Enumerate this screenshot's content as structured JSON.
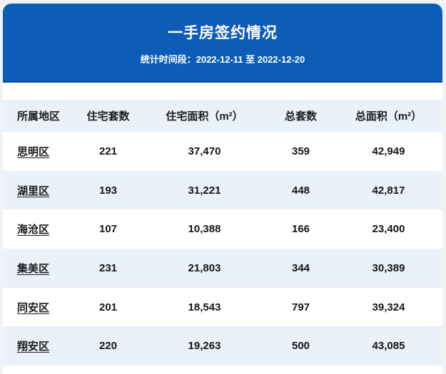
{
  "header": {
    "title": "一手房签约情况",
    "subtitle": "统计时间段：2022-12-11 至 2022-12-20"
  },
  "table": {
    "columns": [
      "所属地区",
      "住宅套数",
      "住宅面积（m²）",
      "总套数",
      "总面积（m²）"
    ],
    "rows": [
      [
        "思明区",
        "221",
        "37,470",
        "359",
        "42,949"
      ],
      [
        "湖里区",
        "193",
        "31,221",
        "448",
        "42,817"
      ],
      [
        "海沧区",
        "107",
        "10,388",
        "166",
        "23,400"
      ],
      [
        "集美区",
        "231",
        "21,803",
        "344",
        "30,389"
      ],
      [
        "同安区",
        "201",
        "18,543",
        "797",
        "39,324"
      ],
      [
        "翔安区",
        "220",
        "19,263",
        "500",
        "43,085"
      ]
    ]
  },
  "colors": {
    "banner_blue": "#0d5db8",
    "banner_border": "#0a4f9e",
    "row_stripe": "#eaf1f9",
    "text_dark": "#1c1c1c",
    "page_background": "#f1f2f3"
  },
  "chart_data": {
    "type": "table",
    "title": "一手房签约情况",
    "subtitle": "统计时间段：2022-12-11 至 2022-12-20",
    "columns": [
      "所属地区",
      "住宅套数",
      "住宅面积（m²）",
      "总套数",
      "总面积（m²）"
    ],
    "rows": [
      {
        "district": "思明区",
        "residential_units": 221,
        "residential_area_m2": 37470,
        "total_units": 359,
        "total_area_m2": 42949
      },
      {
        "district": "湖里区",
        "residential_units": 193,
        "residential_area_m2": 31221,
        "total_units": 448,
        "total_area_m2": 42817
      },
      {
        "district": "海沧区",
        "residential_units": 107,
        "residential_area_m2": 10388,
        "total_units": 166,
        "total_area_m2": 23400
      },
      {
        "district": "集美区",
        "residential_units": 231,
        "residential_area_m2": 21803,
        "total_units": 344,
        "total_area_m2": 30389
      },
      {
        "district": "同安区",
        "residential_units": 201,
        "residential_area_m2": 18543,
        "total_units": 797,
        "total_area_m2": 39324
      },
      {
        "district": "翔安区",
        "residential_units": 220,
        "residential_area_m2": 19263,
        "total_units": 500,
        "total_area_m2": 43085
      }
    ]
  }
}
